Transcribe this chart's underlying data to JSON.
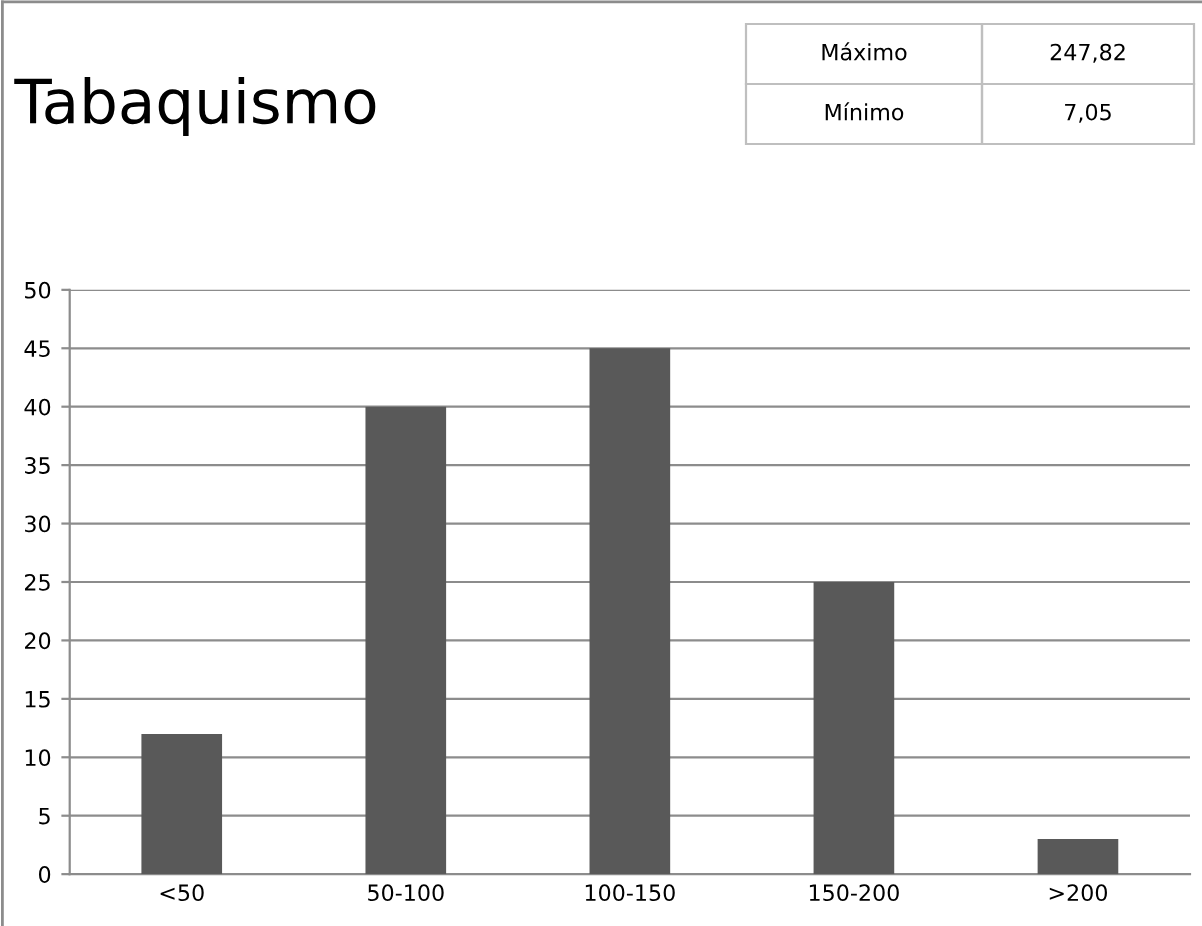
{
  "chart_data": {
    "type": "bar",
    "title": "Tabaquismo",
    "categories": [
      "<50",
      "50-100",
      "100-150",
      "150-200",
      ">200"
    ],
    "values": [
      12,
      40,
      45,
      25,
      3
    ],
    "color": "#595959",
    "ylim": [
      0,
      50
    ],
    "yticks": [
      0,
      5,
      10,
      15,
      20,
      25,
      30,
      35,
      40,
      45,
      50
    ],
    "grid": "y",
    "annotations": [
      "Máximo",
      "247,82",
      "Mínimo",
      "7,05"
    ]
  }
}
